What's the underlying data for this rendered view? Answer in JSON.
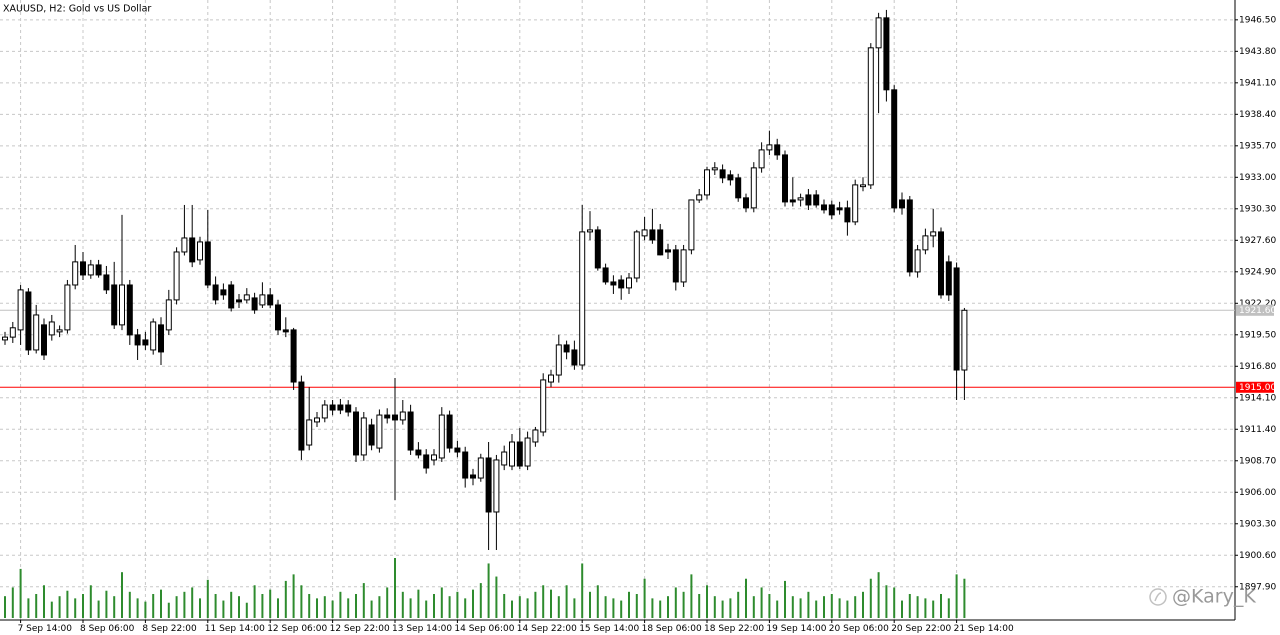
{
  "chart_data": {
    "type": "candlestick",
    "title": "XAUUSD, H2:  Gold vs US Dollar",
    "watermark": "@Kary_K",
    "categories": [
      null,
      null,
      "7 Sep 14:00",
      null,
      null,
      null,
      null,
      null,
      null,
      null,
      "8 Sep 06:00",
      null,
      null,
      null,
      null,
      null,
      null,
      null,
      "8 Sep 22:00",
      null,
      null,
      null,
      null,
      null,
      null,
      null,
      "11 Sep 14:00",
      null,
      null,
      null,
      null,
      null,
      null,
      null,
      "12 Sep 06:00",
      null,
      null,
      null,
      null,
      null,
      null,
      null,
      "12 Sep 22:00",
      null,
      null,
      null,
      null,
      null,
      null,
      null,
      "13 Sep 14:00",
      null,
      null,
      null,
      null,
      null,
      null,
      null,
      "14 Sep 06:00",
      null,
      null,
      null,
      null,
      null,
      null,
      null,
      "14 Sep 22:00",
      null,
      null,
      null,
      null,
      null,
      null,
      null,
      "15 Sep 14:00",
      null,
      null,
      null,
      null,
      null,
      null,
      null,
      "18 Sep 06:00",
      null,
      null,
      null,
      null,
      null,
      null,
      null,
      "18 Sep 22:00",
      null,
      null,
      null,
      null,
      null,
      null,
      null,
      "19 Sep 14:00",
      null,
      null,
      null,
      null,
      null,
      null,
      null,
      "20 Sep 06:00",
      null,
      null,
      null,
      null,
      null,
      null,
      null,
      "20 Sep 22:00",
      null,
      null,
      null,
      null,
      null,
      null,
      null,
      "21 Sep 14:00",
      null
    ],
    "open": [
      1919.06,
      1919.3,
      1919.92,
      1923.17,
      1918.2,
      1920.35,
      1919.49,
      1919.75,
      1919.92,
      1923.77,
      1925.75,
      1924.63,
      1925.49,
      1924.63,
      1923.77,
      1920.35,
      1923.77,
      1919.49,
      1919.06,
      1918.2,
      1920.35,
      1919.92,
      1922.49,
      1926.6,
      1927.8,
      1925.92,
      1927.46,
      1923.77,
      1923.35,
      1923.77,
      1922.49,
      1922.49,
      1922.66,
      1922.06,
      1922.92,
      1922.06,
      1919.92,
      1919.92,
      1915.45,
      1910.05,
      1912.03,
      1912.37,
      1913.48,
      1913.48,
      1913.48,
      1912.88,
      1909.2,
      1911.77,
      1909.79,
      1912.62,
      1912.62,
      1912.2,
      1912.88,
      1909.62,
      1909.2,
      1908.77,
      1908.94,
      1912.62,
      1909.79,
      1909.45,
      1907.48,
      1907.22,
      1908.94,
      1904.31,
      1908.34,
      1908.25,
      1910.31,
      1908.25,
      1910.31,
      1911.17,
      1915.45,
      1916.05,
      1918.63,
      1918.2,
      1916.91,
      1928.32,
      1928.49,
      1925.23,
      1924.03,
      1924.2,
      1923.52,
      1924.37,
      1927.98,
      1928.49,
      1928.49,
      1926.78,
      1926.78,
      1924.03,
      1926.78,
      1931.06,
      1931.49,
      1933.64,
      1933.64,
      1933.21,
      1932.95,
      1931.24,
      1930.38,
      1933.81,
      1935.35,
      1935.78,
      1934.92,
      1931.06,
      1931.06,
      1931.49,
      1931.49,
      1930.63,
      1930.63,
      1930.38,
      1930.38,
      1929.18,
      1932.2,
      1932.35,
      1944.1,
      1946.67,
      1940.5,
      1931.06,
      1931.06,
      1924.89,
      1926.78,
      1927.98,
      1928.32,
      1925.75,
      1925.23,
      1916.48
    ],
    "high": [
      1919.75,
      1920.6,
      1923.77,
      1923.5,
      1922.06,
      1920.9,
      1921.2,
      1920.3,
      1924.2,
      1927.2,
      1926.6,
      1925.92,
      1925.92,
      1925.4,
      1925.75,
      1929.78,
      1924.2,
      1920.0,
      1919.75,
      1920.9,
      1921.0,
      1923.35,
      1927.0,
      1930.63,
      1930.63,
      1927.9,
      1930.21,
      1924.5,
      1923.9,
      1924.1,
      1923.0,
      1923.5,
      1923.1,
      1924.0,
      1923.5,
      1922.5,
      1921.0,
      1920.09,
      1916.0,
      1915.0,
      1912.88,
      1913.9,
      1913.91,
      1914.0,
      1913.9,
      1913.3,
      1912.88,
      1912.3,
      1913.1,
      1913.2,
      1915.8,
      1913.91,
      1913.5,
      1910.3,
      1909.7,
      1909.7,
      1913.3,
      1913.0,
      1910.4,
      1909.9,
      1908.0,
      1909.3,
      1910.31,
      1909.2,
      1910.0,
      1911.0,
      1911.5,
      1911.2,
      1911.6,
      1916.2,
      1916.5,
      1919.5,
      1919.0,
      1919.0,
      1930.63,
      1930.1,
      1928.8,
      1925.6,
      1924.6,
      1924.6,
      1924.8,
      1928.49,
      1929.6,
      1930.3,
      1929.0,
      1927.3,
      1927.2,
      1927.2,
      1931.1,
      1932.0,
      1933.9,
      1934.3,
      1934.1,
      1933.6,
      1933.3,
      1931.6,
      1934.3,
      1936.0,
      1937.0,
      1936.3,
      1935.3,
      1933.0,
      1931.6,
      1932.0,
      1931.9,
      1931.1,
      1931.0,
      1930.9,
      1931.0,
      1932.8,
      1933.0,
      1944.5,
      1947.1,
      1947.35,
      1940.9,
      1931.7,
      1931.4,
      1927.2,
      1928.6,
      1930.3,
      1928.7,
      1926.3,
      1925.7,
      1921.8
    ],
    "low": [
      1918.63,
      1918.8,
      1918.63,
      1917.77,
      1917.9,
      1917.34,
      1919.0,
      1919.3,
      1919.6,
      1923.4,
      1924.2,
      1924.3,
      1924.4,
      1923.0,
      1920.0,
      1919.9,
      1918.63,
      1917.34,
      1918.2,
      1917.8,
      1916.91,
      1919.49,
      1922.1,
      1926.3,
      1925.3,
      1925.5,
      1923.5,
      1922.1,
      1922.5,
      1921.5,
      1921.8,
      1922.2,
      1921.3,
      1921.8,
      1921.8,
      1919.49,
      1919.3,
      1914.77,
      1908.77,
      1909.6,
      1911.6,
      1912.0,
      1912.6,
      1912.7,
      1912.5,
      1908.6,
      1908.7,
      1909.6,
      1909.4,
      1911.9,
      1905.34,
      1911.8,
      1909.2,
      1908.9,
      1907.6,
      1908.3,
      1908.6,
      1909.4,
      1909.0,
      1906.4,
      1906.6,
      1906.9,
      1901.05,
      1901.05,
      1907.9,
      1907.9,
      1908.0,
      1907.9,
      1909.9,
      1910.8,
      1915.0,
      1915.4,
      1917.4,
      1916.5,
      1916.5,
      1927.6,
      1925.0,
      1923.8,
      1923.0,
      1922.5,
      1923.0,
      1924.0,
      1927.6,
      1927.3,
      1926.3,
      1926.0,
      1923.3,
      1923.6,
      1926.4,
      1930.8,
      1931.1,
      1933.2,
      1932.5,
      1932.3,
      1930.9,
      1930.0,
      1930.0,
      1933.4,
      1934.9,
      1934.5,
      1930.5,
      1930.5,
      1930.5,
      1930.2,
      1930.4,
      1929.9,
      1929.4,
      1929.8,
      1928.0,
      1928.9,
      1931.8,
      1932.0,
      1938.5,
      1939.5,
      1930.0,
      1929.8,
      1924.5,
      1924.4,
      1926.4,
      1927.0,
      1922.6,
      1922.4,
      1913.91,
      1913.91
    ],
    "close": [
      1919.3,
      1920.1,
      1923.35,
      1918.2,
      1921.2,
      1917.77,
      1920.6,
      1919.92,
      1923.77,
      1925.75,
      1924.63,
      1925.49,
      1924.63,
      1923.35,
      1920.35,
      1923.77,
      1919.49,
      1918.63,
      1918.63,
      1920.6,
      1918.03,
      1922.49,
      1926.6,
      1927.8,
      1925.75,
      1927.46,
      1923.77,
      1922.49,
      1922.92,
      1921.8,
      1922.32,
      1922.92,
      1921.63,
      1922.92,
      1922.06,
      1919.92,
      1919.75,
      1915.45,
      1909.62,
      1912.2,
      1912.37,
      1913.48,
      1913.05,
      1913.05,
      1912.88,
      1909.2,
      1912.37,
      1910.05,
      1912.62,
      1912.37,
      1912.2,
      1912.88,
      1909.62,
      1909.2,
      1908.08,
      1909.2,
      1912.62,
      1909.79,
      1909.45,
      1907.22,
      1907.22,
      1908.94,
      1904.31,
      1908.77,
      1909.45,
      1910.31,
      1908.25,
      1910.65,
      1911.34,
      1915.63,
      1916.05,
      1918.63,
      1918.03,
      1916.91,
      1928.32,
      1928.49,
      1925.23,
      1924.03,
      1923.77,
      1923.52,
      1924.37,
      1928.32,
      1928.49,
      1927.63,
      1926.35,
      1926.6,
      1924.03,
      1926.78,
      1931.06,
      1931.49,
      1933.64,
      1933.81,
      1932.95,
      1932.78,
      1931.24,
      1930.38,
      1933.81,
      1935.35,
      1935.78,
      1934.92,
      1930.89,
      1930.89,
      1931.24,
      1930.63,
      1930.63,
      1930.21,
      1929.78,
      1930.21,
      1929.18,
      1932.35,
      1932.35,
      1944.1,
      1946.67,
      1940.5,
      1930.38,
      1930.38,
      1924.89,
      1926.78,
      1927.98,
      1928.32,
      1922.92,
      1922.92,
      1916.48,
      1921.6
    ],
    "volume": [
      20,
      28,
      45,
      18,
      22,
      30,
      15,
      20,
      25,
      18,
      22,
      30,
      16,
      25,
      20,
      42,
      24,
      18,
      15,
      22,
      26,
      14,
      20,
      24,
      28,
      18,
      35,
      22,
      16,
      24,
      20,
      14,
      30,
      22,
      26,
      18,
      34,
      40,
      30,
      22,
      18,
      20,
      16,
      24,
      18,
      22,
      32,
      16,
      20,
      28,
      55,
      24,
      18,
      26,
      16,
      22,
      28,
      20,
      24,
      18,
      26,
      32,
      50,
      38,
      22,
      16,
      20,
      18,
      24,
      30,
      26,
      20,
      30,
      18,
      50,
      24,
      30,
      20,
      18,
      16,
      24,
      22,
      36,
      18,
      16,
      20,
      28,
      24,
      40,
      22,
      30,
      20,
      16,
      18,
      24,
      36,
      20,
      28,
      22,
      16,
      34,
      20,
      18,
      24,
      16,
      20,
      22,
      18,
      16,
      20,
      24,
      36,
      42,
      30,
      28,
      16,
      22,
      20,
      18,
      16,
      22,
      18,
      40,
      36
    ],
    "volume_color": "#2e8b2e",
    "up_color": "#ffffff",
    "down_color": "#000000",
    "ylim": [
      1895.05,
      1948.2
    ],
    "yticks": [
      {
        "value": 1946.5,
        "label": "1946.50"
      },
      {
        "value": 1943.8,
        "label": "1943.80"
      },
      {
        "value": 1941.1,
        "label": "1941.10"
      },
      {
        "value": 1938.4,
        "label": "1938.40"
      },
      {
        "value": 1935.7,
        "label": "1935.70"
      },
      {
        "value": 1933,
        "label": "1933.00"
      },
      {
        "value": 1930.3,
        "label": "1930.30"
      },
      {
        "value": 1927.6,
        "label": "1927.60"
      },
      {
        "value": 1924.9,
        "label": "1924.90"
      },
      {
        "value": 1922.2,
        "label": "1922.20"
      },
      {
        "value": 1919.5,
        "label": "1919.50"
      },
      {
        "value": 1916.8,
        "label": "1916.80"
      },
      {
        "value": 1914.1,
        "label": "1914.10"
      },
      {
        "value": 1911.4,
        "label": "1911.40"
      },
      {
        "value": 1908.7,
        "label": "1908.70"
      },
      {
        "value": 1906,
        "label": "1906.00"
      },
      {
        "value": 1903.3,
        "label": "1903.30"
      },
      {
        "value": 1900.6,
        "label": "1900.60"
      },
      {
        "value": 1897.9,
        "label": "1897.90"
      }
    ],
    "grid": true,
    "hlines": [
      {
        "value": 1921.6,
        "label": "1921.60",
        "color": "#c0c0c0"
      },
      {
        "value": 1915,
        "label": "1915.00",
        "color": "#ff0000"
      }
    ]
  }
}
